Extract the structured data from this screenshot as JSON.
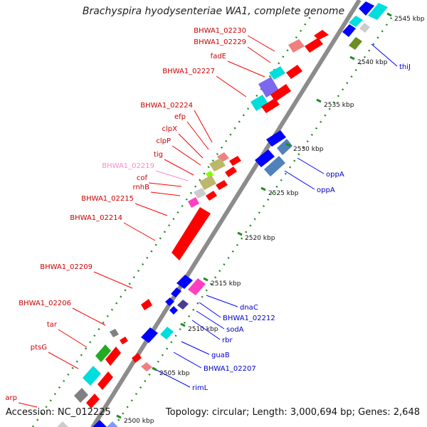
{
  "title": "Brachyspira hyodysenteriae WA1, complete genome",
  "footer": {
    "accession": "Accession: NC_012225",
    "summary": "Topology: circular; Length: 3,000,694 bp; Genes: 2,648"
  },
  "colors": {
    "red": "#ff0000",
    "blue": "#0000ff",
    "cyan": "#00dddd",
    "steel": "#4f81bd",
    "purple": "#7b68ee",
    "magenta": "#ff3fbf",
    "pink": "#f08080",
    "olive": "#bdb76b",
    "grey": "#b0b0b0",
    "green": "#22aa22",
    "backbone": "#8c8c8c",
    "tick": "#228b22",
    "label_red": "#cc0000",
    "label_pink": "#ff88cc",
    "label_blue": "#0000cc"
  },
  "ticks": [
    {
      "label": "2500 kbp"
    },
    {
      "label": "2505 kbp"
    },
    {
      "label": "2510 kbp"
    },
    {
      "label": "2515 kbp"
    },
    {
      "label": "2520 kbp"
    },
    {
      "label": "2525 kbp"
    },
    {
      "label": "2530 kbp"
    },
    {
      "label": "2535 kbp"
    },
    {
      "label": "2540 kbp"
    },
    {
      "label": "2545 kbp"
    }
  ],
  "gene_labels_left": [
    {
      "text": "BHWA1_02230",
      "color": "red"
    },
    {
      "text": "BHWA1_02229",
      "color": "red"
    },
    {
      "text": "fadE",
      "color": "red"
    },
    {
      "text": "BHWA1_02227",
      "color": "red"
    },
    {
      "text": "BHWA1_02224",
      "color": "red"
    },
    {
      "text": "efp",
      "color": "red"
    },
    {
      "text": "clpX",
      "color": "red"
    },
    {
      "text": "clpP",
      "color": "red"
    },
    {
      "text": "tig",
      "color": "red"
    },
    {
      "text": "BHWA1_02219",
      "color": "pink"
    },
    {
      "text": "cof",
      "color": "red"
    },
    {
      "text": "rnhB",
      "color": "red"
    },
    {
      "text": "BHWA1_02215",
      "color": "red"
    },
    {
      "text": "BHWA1_02214",
      "color": "red"
    },
    {
      "text": "BHWA1_02209",
      "color": "red"
    },
    {
      "text": "BHWA1_02206",
      "color": "red"
    },
    {
      "text": "tar",
      "color": "red"
    },
    {
      "text": "ptsG",
      "color": "red"
    },
    {
      "text": "arp",
      "color": "red"
    }
  ],
  "gene_labels_right": [
    {
      "text": "thiJ"
    },
    {
      "text": "oppA"
    },
    {
      "text": "oppA"
    },
    {
      "text": "dnaC"
    },
    {
      "text": "BHWA1_02212"
    },
    {
      "text": "sodA"
    },
    {
      "text": "rbr"
    },
    {
      "text": "guaB"
    },
    {
      "text": "BHWA1_02207"
    },
    {
      "text": "rimL"
    }
  ]
}
